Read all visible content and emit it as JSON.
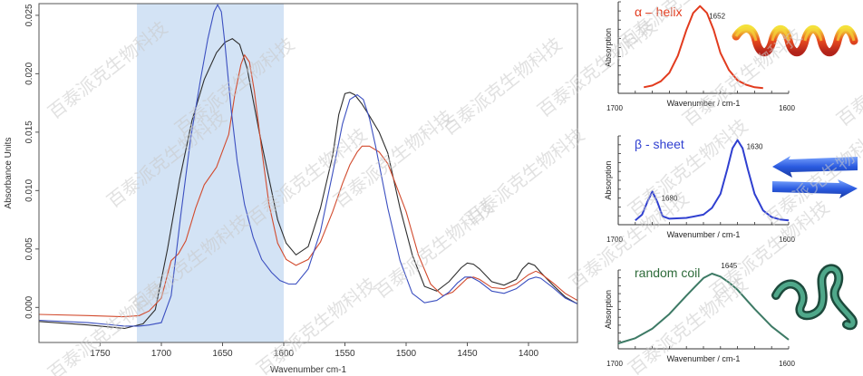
{
  "watermark": {
    "text": "百泰派克生物科技",
    "color": "#c9c9c9"
  },
  "chart_data": [
    {
      "id": "main",
      "type": "line",
      "xlabel": "Wavenumber cm-1",
      "ylabel": "Absorbance Units",
      "xlim": [
        1800,
        1360
      ],
      "ylim": [
        -0.003,
        0.026
      ],
      "x_ticks": [
        {
          "value": 1750,
          "label": "1750"
        },
        {
          "value": 1700,
          "label": "1700"
        },
        {
          "value": 1650,
          "label": "1650"
        },
        {
          "value": 1600,
          "label": "1600"
        },
        {
          "value": 1550,
          "label": "1550"
        },
        {
          "value": 1500,
          "label": "1500"
        },
        {
          "value": 1450,
          "label": "1450"
        },
        {
          "value": 1400,
          "label": "1400"
        }
      ],
      "y_ticks": [
        {
          "value": 0.025,
          "label": "0.025"
        },
        {
          "value": 0.02,
          "label": "0.020"
        },
        {
          "value": 0.015,
          "label": "0.015"
        },
        {
          "value": 0.01,
          "label": "0.010"
        },
        {
          "value": 0.005,
          "label": "0.005"
        },
        {
          "value": 0.0,
          "label": "0.000"
        }
      ],
      "highlight_band": {
        "x_from": 1720,
        "x_to": 1600,
        "color": "#d3e3f5"
      },
      "series": [
        {
          "color": "#2e2e2e",
          "x": [
            1800,
            1760,
            1730,
            1715,
            1705,
            1695,
            1685,
            1675,
            1665,
            1655,
            1648,
            1642,
            1636,
            1630,
            1620,
            1612,
            1605,
            1598,
            1590,
            1580,
            1570,
            1560,
            1555,
            1550,
            1546,
            1542,
            1536,
            1530,
            1522,
            1515,
            1505,
            1495,
            1485,
            1475,
            1465,
            1455,
            1450,
            1445,
            1440,
            1430,
            1420,
            1410,
            1405,
            1400,
            1395,
            1390,
            1380,
            1370,
            1360
          ],
          "y": [
            -0.0012,
            -0.0015,
            -0.0018,
            -0.0014,
            -0.0002,
            0.005,
            0.011,
            0.016,
            0.0195,
            0.0218,
            0.0227,
            0.023,
            0.0225,
            0.0205,
            0.015,
            0.011,
            0.0075,
            0.0055,
            0.0045,
            0.0052,
            0.0085,
            0.013,
            0.0165,
            0.0183,
            0.0184,
            0.0182,
            0.0174,
            0.0164,
            0.015,
            0.0132,
            0.0085,
            0.0045,
            0.0018,
            0.0014,
            0.0022,
            0.0034,
            0.0038,
            0.0037,
            0.0033,
            0.0022,
            0.0019,
            0.0024,
            0.0033,
            0.0038,
            0.0036,
            0.003,
            0.0019,
            0.0009,
            0.0003
          ]
        },
        {
          "color": "#d24b2e",
          "x": [
            1800,
            1760,
            1730,
            1718,
            1710,
            1700,
            1692,
            1686,
            1680,
            1672,
            1665,
            1655,
            1645,
            1640,
            1635,
            1632,
            1628,
            1624,
            1618,
            1612,
            1605,
            1598,
            1590,
            1580,
            1570,
            1560,
            1552,
            1546,
            1540,
            1536,
            1530,
            1522,
            1515,
            1508,
            1500,
            1490,
            1480,
            1470,
            1462,
            1455,
            1450,
            1445,
            1440,
            1430,
            1420,
            1410,
            1400,
            1394,
            1390,
            1380,
            1370,
            1360
          ],
          "y": [
            -0.0006,
            -0.0007,
            -0.0008,
            -0.0007,
            -0.0003,
            0.0008,
            0.004,
            0.0046,
            0.0057,
            0.0085,
            0.0105,
            0.012,
            0.0148,
            0.0182,
            0.0208,
            0.0216,
            0.021,
            0.0185,
            0.0135,
            0.0088,
            0.0055,
            0.0041,
            0.0036,
            0.0041,
            0.0056,
            0.0082,
            0.0106,
            0.0122,
            0.0133,
            0.0138,
            0.0138,
            0.0133,
            0.0123,
            0.0104,
            0.0082,
            0.0045,
            0.002,
            0.001,
            0.0013,
            0.002,
            0.0025,
            0.0026,
            0.0024,
            0.0017,
            0.0016,
            0.002,
            0.0028,
            0.0031,
            0.0029,
            0.0021,
            0.0012,
            0.0006
          ]
        },
        {
          "color": "#3b4fc0",
          "x": [
            1800,
            1760,
            1730,
            1718,
            1710,
            1700,
            1692,
            1684,
            1676,
            1668,
            1662,
            1657,
            1654,
            1651,
            1648,
            1643,
            1638,
            1632,
            1625,
            1618,
            1610,
            1603,
            1596,
            1590,
            1580,
            1570,
            1560,
            1552,
            1546,
            1540,
            1535,
            1530,
            1525,
            1515,
            1505,
            1495,
            1485,
            1475,
            1465,
            1458,
            1452,
            1447,
            1440,
            1430,
            1420,
            1410,
            1400,
            1394,
            1390,
            1380,
            1370,
            1360
          ],
          "y": [
            -0.0011,
            -0.0013,
            -0.0016,
            -0.0016,
            -0.0015,
            -0.0013,
            0.001,
            0.008,
            0.0145,
            0.0195,
            0.023,
            0.0253,
            0.0259,
            0.0253,
            0.0225,
            0.017,
            0.0125,
            0.0088,
            0.006,
            0.0041,
            0.003,
            0.0023,
            0.002,
            0.002,
            0.0033,
            0.0065,
            0.0115,
            0.0157,
            0.0178,
            0.0182,
            0.0178,
            0.0162,
            0.0138,
            0.0085,
            0.004,
            0.0012,
            0.0004,
            0.0006,
            0.0013,
            0.0021,
            0.0026,
            0.0026,
            0.0022,
            0.0014,
            0.0012,
            0.0016,
            0.0024,
            0.0026,
            0.0025,
            0.0017,
            0.0008,
            0.0003
          ]
        }
      ]
    },
    {
      "id": "alpha",
      "type": "line",
      "title": "α – helix",
      "title_color": "#e23b1e",
      "xlabel": "Wavenumber / cm-1",
      "ylabel": "Absorption",
      "xlim": [
        1700,
        1600
      ],
      "x_ticks": [
        {
          "value": 1700,
          "label": "1700"
        },
        {
          "value": 1600,
          "label": "1600"
        }
      ],
      "peak_labels": [
        {
          "x": 1652,
          "label": "1652"
        }
      ],
      "series": [
        {
          "color": "#e23b1e",
          "x": [
            1685,
            1680,
            1675,
            1670,
            1665,
            1660,
            1656,
            1652,
            1648,
            1644,
            1640,
            1635,
            1630,
            1625,
            1620,
            1615
          ],
          "y": [
            0.05,
            0.07,
            0.12,
            0.22,
            0.42,
            0.72,
            0.92,
            1.0,
            0.92,
            0.72,
            0.45,
            0.25,
            0.13,
            0.08,
            0.05,
            0.04
          ]
        }
      ]
    },
    {
      "id": "beta",
      "type": "line",
      "title": "β - sheet",
      "title_color": "#2f3fd0",
      "xlabel": "Wavenumber / cm-1",
      "ylabel": "Absorption",
      "xlim": [
        1700,
        1600
      ],
      "x_ticks": [
        {
          "value": 1700,
          "label": "1700"
        },
        {
          "value": 1600,
          "label": "1600"
        }
      ],
      "peak_labels": [
        {
          "x": 1680,
          "label": "1680"
        },
        {
          "value_note": "",
          "x": 1630,
          "label": "1630"
        }
      ],
      "series": [
        {
          "color": "#2f3fd0",
          "x": [
            1690,
            1686,
            1683,
            1680,
            1677,
            1674,
            1670,
            1660,
            1650,
            1645,
            1640,
            1636,
            1633,
            1630,
            1627,
            1624,
            1620,
            1615,
            1610,
            1605,
            1600
          ],
          "y": [
            0.03,
            0.1,
            0.25,
            0.38,
            0.25,
            0.08,
            0.05,
            0.06,
            0.1,
            0.18,
            0.35,
            0.65,
            0.9,
            1.0,
            0.9,
            0.65,
            0.35,
            0.15,
            0.07,
            0.04,
            0.03
          ]
        }
      ]
    },
    {
      "id": "coil",
      "type": "line",
      "title": "random coil",
      "title_color": "#2e6b3a",
      "xlabel": "Wavenumber / cm-1",
      "ylabel": "Absorption",
      "xlim": [
        1700,
        1600
      ],
      "x_ticks": [
        {
          "value": 1700,
          "label": "1700"
        },
        {
          "value": 1600,
          "label": "1600"
        }
      ],
      "peak_labels": [
        {
          "x": 1645,
          "label": "1645"
        }
      ],
      "series": [
        {
          "color": "#3d7a65",
          "x": [
            1700,
            1690,
            1680,
            1670,
            1660,
            1655,
            1650,
            1645,
            1640,
            1635,
            1630,
            1620,
            1610,
            1600
          ],
          "y": [
            0.05,
            0.12,
            0.25,
            0.45,
            0.7,
            0.82,
            0.94,
            1.0,
            0.96,
            0.88,
            0.78,
            0.52,
            0.28,
            0.1
          ]
        }
      ]
    }
  ]
}
